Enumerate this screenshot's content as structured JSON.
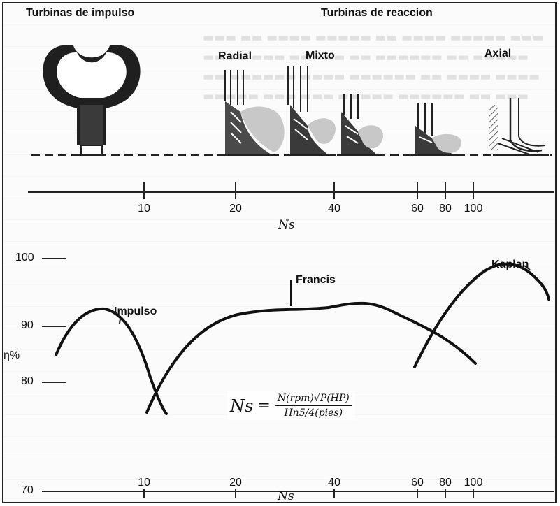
{
  "top": {
    "title_impulse": "Turbinas de impulso",
    "title_reaction": "Turbinas de reaccion",
    "labels": {
      "radial": "Radial",
      "mixto": "Mixto",
      "axial": "Axial"
    },
    "axis_ticks": [
      "10",
      "20",
      "40",
      "60",
      "80",
      "100"
    ],
    "axis_label": "Ns"
  },
  "bottom": {
    "y_ticks": [
      "100",
      "90",
      "80",
      "70"
    ],
    "y_label": "η%",
    "x_ticks": [
      "10",
      "20",
      "40",
      "60",
      "80",
      "100"
    ],
    "x_label": "Ns",
    "annotations": {
      "impulso": "Impulso",
      "francis": "Francis",
      "kaplan": "Kaplan"
    },
    "formula": {
      "lhs": "Ns",
      "numerator": "N(rpm)√P(HP)",
      "denominator": "Hn5/4(pies)"
    }
  },
  "chart_data": {
    "type": "line",
    "xlabel": "Ns",
    "ylabel": "η%",
    "x_scale": "log",
    "x_ticks": [
      10,
      20,
      40,
      60,
      80,
      100
    ],
    "ylim": [
      70,
      100
    ],
    "y_ticks": [
      70,
      80,
      90,
      100
    ],
    "grid": false,
    "series": [
      {
        "name": "Impulso",
        "x": [
          4.4,
          5.5,
          7,
          8.5,
          10,
          11.5
        ],
        "y": [
          86.5,
          89.5,
          90.5,
          89,
          84.5,
          77
        ]
      },
      {
        "name": "Francis",
        "x": [
          10.3,
          13,
          18,
          25,
          35,
          45,
          60,
          70
        ],
        "y": [
          78.5,
          83.5,
          91.5,
          93.5,
          93.5,
          94,
          90.5,
          85.5
        ]
      },
      {
        "name": "Kaplan",
        "x": [
          60,
          75,
          90,
          110,
          130
        ],
        "y": [
          84,
          90.5,
          95,
          96.5,
          94.5
        ]
      }
    ]
  }
}
